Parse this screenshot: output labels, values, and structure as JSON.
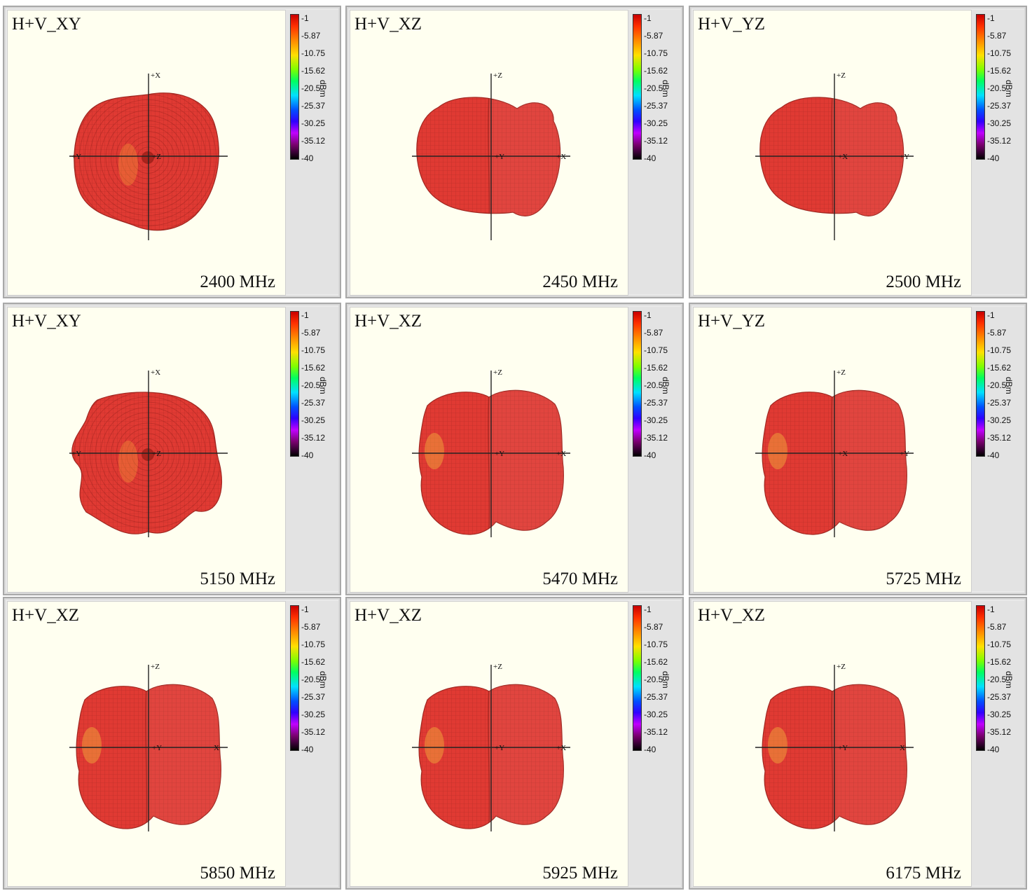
{
  "colorbar": {
    "ticks": [
      "-1",
      "-5.87",
      "-10.75",
      "-15.62",
      "-20.5",
      "-25.37",
      "-30.25",
      "-35.12",
      "-40"
    ],
    "unit": "dBm",
    "colors": [
      "#c80000",
      "#ff3000",
      "#ff8a00",
      "#ffe000",
      "#7dff00",
      "#00ff60",
      "#00e0ff",
      "#0050ff",
      "#3000ff",
      "#c000ff",
      "#7a0070",
      "#000000"
    ]
  },
  "pattern_color": "#e03a33",
  "panels": [
    {
      "title": "H+V_XY",
      "freq": "2400 MHz",
      "top_axis": "+X",
      "left_axis": "+Y",
      "center_axis": "+Z",
      "right_axis": "",
      "shape": "round"
    },
    {
      "title": "H+V_XZ",
      "freq": "2450 MHz",
      "top_axis": "+Z",
      "left_axis": "",
      "center_axis": "+Y",
      "right_axis": "+X",
      "shape": "lobe"
    },
    {
      "title": "H+V_YZ",
      "freq": "2500 MHz",
      "top_axis": "+Z",
      "left_axis": "",
      "center_axis": "+X",
      "right_axis": "+Y",
      "shape": "lobe"
    },
    {
      "title": "H+V_XY",
      "freq": "5150 MHz",
      "top_axis": "+X",
      "left_axis": "+Y",
      "center_axis": "+Z",
      "right_axis": "",
      "shape": "wavy"
    },
    {
      "title": "H+V_XZ",
      "freq": "5470 MHz",
      "top_axis": "+Z",
      "left_axis": "",
      "center_axis": "+Y",
      "right_axis": "+X",
      "shape": "cube"
    },
    {
      "title": "H+V_YZ",
      "freq": "5725 MHz",
      "top_axis": "+Z",
      "left_axis": "",
      "center_axis": "+X",
      "right_axis": "+Y",
      "shape": "cube"
    },
    {
      "title": "H+V_XZ",
      "freq": "5850 MHz",
      "top_axis": "+Z",
      "left_axis": "",
      "center_axis": "+Y",
      "right_axis": "X",
      "shape": "cube"
    },
    {
      "title": "H+V_XZ",
      "freq": "5925 MHz",
      "top_axis": "+Z",
      "left_axis": "",
      "center_axis": "+Y",
      "right_axis": "+X",
      "shape": "cube"
    },
    {
      "title": "H+V_XZ",
      "freq": "6175 MHz",
      "top_axis": "+Z",
      "left_axis": "",
      "center_axis": "+Y",
      "right_axis": "X",
      "shape": "cube"
    }
  ]
}
